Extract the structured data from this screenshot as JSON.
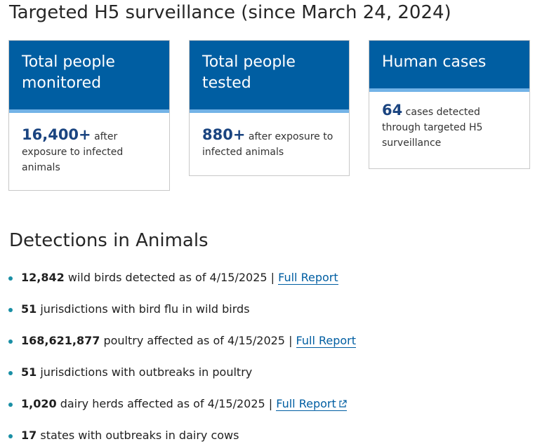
{
  "surveillance": {
    "title": "Targeted H5 surveillance (since March 24, 2024)",
    "cards": [
      {
        "heading": "Total people monitored",
        "value": "16,400+",
        "text": " after exposure to infected animals"
      },
      {
        "heading": "Total people tested",
        "value": "880+",
        "text": " after exposure to infected animals"
      },
      {
        "heading": "Human cases",
        "value": "64",
        "text": " cases detected through targeted H5 surveillance"
      }
    ]
  },
  "animals": {
    "title": "Detections in Animals",
    "items": [
      {
        "value": "12,842",
        "text": " wild birds detected as of 4/15/2025 | ",
        "link": "Full Report"
      },
      {
        "value": "51",
        "text": " jurisdictions with bird flu in wild birds"
      },
      {
        "value": "168,621,877",
        "text": " poultry affected as of 4/15/2025 | ",
        "link": "Full Report"
      },
      {
        "value": "51",
        "text": " jurisdictions with outbreaks in poultry"
      },
      {
        "value": "1,020",
        "text": " dairy herds affected as of 4/15/2025 | ",
        "link": "Full Report",
        "external_icon": "external-link-icon"
      },
      {
        "value": "17",
        "text": " states with outbreaks in dairy cows"
      }
    ]
  },
  "colors": {
    "card_header": "#005ea2",
    "card_accent": "#73b3e7",
    "value_blue": "#1a4480",
    "bullet": "#1a8fa5",
    "link": "#005ea2"
  }
}
